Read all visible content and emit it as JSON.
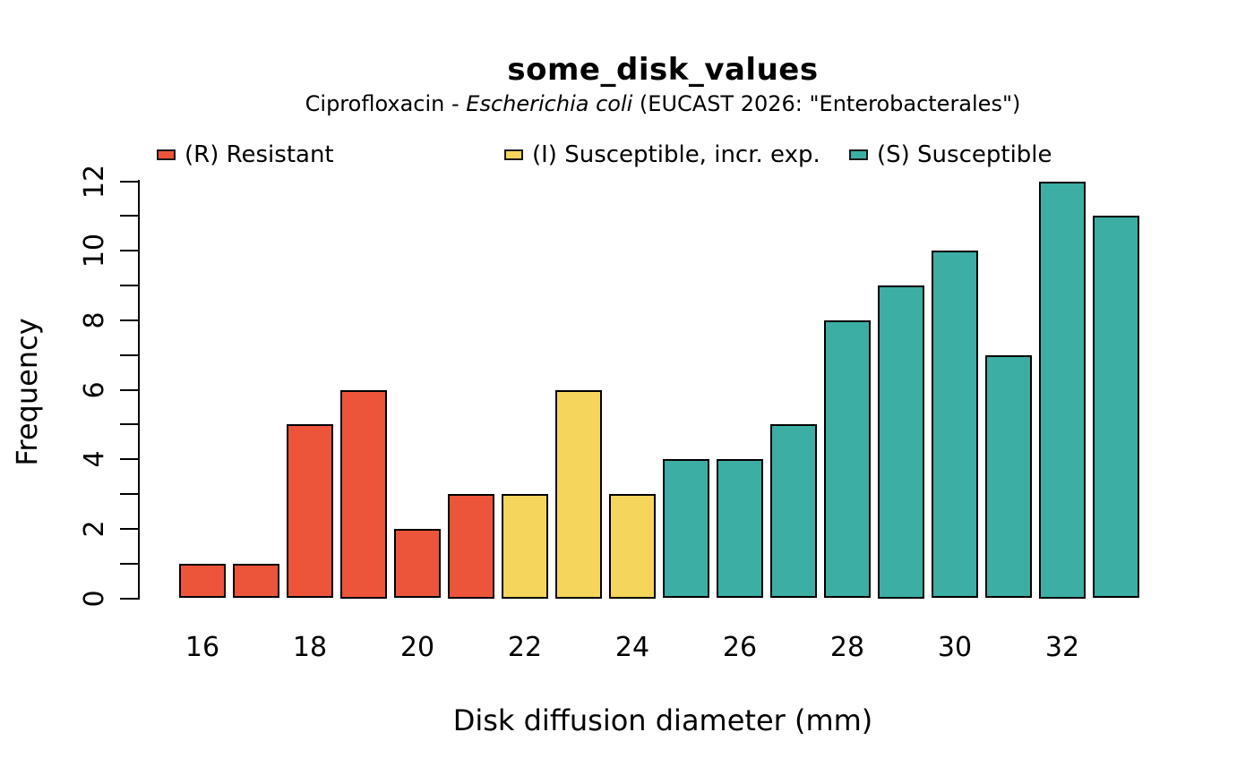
{
  "chart_data": {
    "type": "bar",
    "title": "some_disk_values",
    "subtitle": {
      "prefix": "Ciprofloxacin - ",
      "italic": "Escherichia coli",
      "suffix": " (EUCAST 2026: \"Enterobacterales\")"
    },
    "xlabel": "Disk diffusion diameter (mm)",
    "ylabel": "Frequency",
    "x": [
      16,
      17,
      18,
      19,
      20,
      21,
      22,
      23,
      24,
      25,
      26,
      27,
      28,
      29,
      30,
      31,
      32,
      33
    ],
    "values": [
      1,
      1,
      5,
      6,
      2,
      3,
      3,
      6,
      3,
      4,
      4,
      5,
      8,
      9,
      10,
      7,
      12,
      11
    ],
    "groups": [
      "R",
      "R",
      "R",
      "R",
      "R",
      "R",
      "I",
      "I",
      "I",
      "S",
      "S",
      "S",
      "S",
      "S",
      "S",
      "S",
      "S",
      "S"
    ],
    "ylim": [
      0,
      12
    ],
    "ytick_step": 1,
    "ytick_labels": [
      0,
      2,
      4,
      6,
      8,
      10,
      12
    ],
    "xtick_labels": [
      16,
      18,
      20,
      22,
      24,
      26,
      28,
      30,
      32
    ],
    "grid": false,
    "legend_position": "top",
    "bar_border_color": "#000000",
    "legend": [
      {
        "key": "R",
        "label": "(R) Resistant",
        "color": "#ED553B"
      },
      {
        "key": "I",
        "label": "(I) Susceptible, incr. exp.",
        "color": "#F6D55C"
      },
      {
        "key": "S",
        "label": "(S) Susceptible",
        "color": "#3CAEA3"
      }
    ]
  }
}
